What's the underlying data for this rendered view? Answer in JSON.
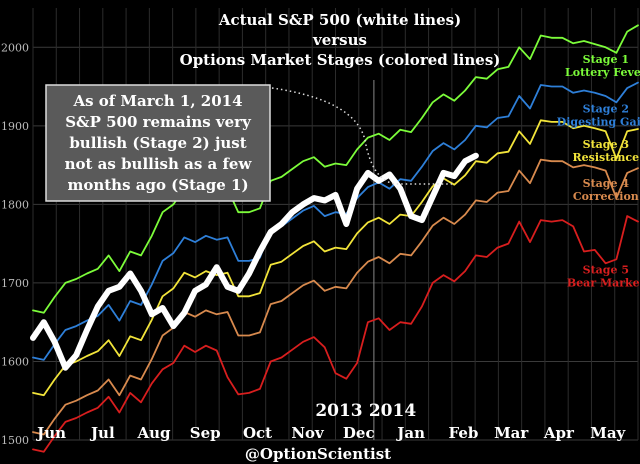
{
  "chart_data": {
    "type": "line",
    "title": [
      "Actual S&P 500 (white lines)",
      "versus",
      "Options Market Stages (colored lines)"
    ],
    "ylim": [
      1500,
      2050
    ],
    "yticks": [
      1500,
      1600,
      1700,
      1800,
      1900,
      2000
    ],
    "xlim": [
      0,
      52
    ],
    "month_labels": [
      {
        "label": "Jun",
        "x": 1.6
      },
      {
        "label": "Jul",
        "x": 6.0
      },
      {
        "label": "Aug",
        "x": 10.4
      },
      {
        "label": "Sep",
        "x": 14.8
      },
      {
        "label": "Oct",
        "x": 19.3
      },
      {
        "label": "Nov",
        "x": 23.6
      },
      {
        "label": "Dec",
        "x": 28.0
      },
      {
        "label": "Jan",
        "x": 32.5
      },
      {
        "label": "Feb",
        "x": 37.0
      },
      {
        "label": "Mar",
        "x": 41.1
      },
      {
        "label": "Apr",
        "x": 45.2
      },
      {
        "label": "May",
        "x": 49.4
      }
    ],
    "year_labels": [
      {
        "label": "2013",
        "x": 26.3
      },
      {
        "label": "2014",
        "x": 30.9
      }
    ],
    "year_divider_x": 29.3,
    "series": [
      {
        "name": "Stage 1",
        "sublabel": "Lottery Fever",
        "color": "#7CFC3A",
        "values": [
          1665,
          1662,
          1682,
          1700,
          1705,
          1712,
          1718,
          1735,
          1715,
          1740,
          1735,
          1760,
          1790,
          1800,
          1820,
          1815,
          1822,
          1818,
          1820,
          1790,
          1790,
          1795,
          1830,
          1835,
          1845,
          1855,
          1860,
          1848,
          1852,
          1850,
          1870,
          1885,
          1890,
          1882,
          1895,
          1892,
          1910,
          1930,
          1940,
          1932,
          1945,
          1962,
          1960,
          1972,
          1975,
          2000,
          1985,
          2015,
          2012,
          2012,
          2005,
          2008,
          2004,
          2000,
          1993,
          2020,
          2028
        ],
        "x0": 0
      },
      {
        "name": "Stage 2",
        "sublabel": "Digesting Gains",
        "color": "#2E7FD8",
        "values": [
          1605,
          1602,
          1622,
          1640,
          1645,
          1652,
          1658,
          1672,
          1652,
          1677,
          1672,
          1698,
          1728,
          1738,
          1758,
          1752,
          1760,
          1755,
          1758,
          1728,
          1728,
          1732,
          1768,
          1772,
          1782,
          1792,
          1798,
          1785,
          1790,
          1788,
          1808,
          1822,
          1828,
          1820,
          1832,
          1830,
          1848,
          1868,
          1878,
          1870,
          1882,
          1900,
          1898,
          1910,
          1912,
          1938,
          1922,
          1952,
          1950,
          1950,
          1942,
          1945,
          1942,
          1938,
          1930,
          1948,
          1955
        ],
        "x0": 0
      },
      {
        "name": "Stage 3",
        "sublabel": "Resistance",
        "color": "#F2E43A",
        "values": [
          1560,
          1557,
          1577,
          1595,
          1600,
          1607,
          1613,
          1627,
          1607,
          1632,
          1627,
          1653,
          1683,
          1693,
          1713,
          1707,
          1715,
          1710,
          1713,
          1683,
          1683,
          1687,
          1723,
          1727,
          1737,
          1747,
          1753,
          1740,
          1745,
          1743,
          1763,
          1777,
          1783,
          1775,
          1787,
          1785,
          1803,
          1823,
          1833,
          1825,
          1837,
          1855,
          1853,
          1865,
          1867,
          1893,
          1877,
          1907,
          1905,
          1905,
          1897,
          1900,
          1897,
          1893,
          1858,
          1893,
          1896
        ],
        "x0": 0
      },
      {
        "name": "Stage 4",
        "sublabel": "Correction",
        "color": "#D88A4E",
        "values": [
          1510,
          1507,
          1527,
          1545,
          1550,
          1557,
          1563,
          1577,
          1557,
          1582,
          1577,
          1603,
          1633,
          1643,
          1663,
          1657,
          1665,
          1660,
          1663,
          1633,
          1633,
          1637,
          1673,
          1677,
          1687,
          1697,
          1703,
          1690,
          1695,
          1693,
          1713,
          1727,
          1733,
          1725,
          1737,
          1735,
          1753,
          1773,
          1783,
          1775,
          1787,
          1805,
          1803,
          1815,
          1817,
          1843,
          1827,
          1857,
          1855,
          1855,
          1847,
          1850,
          1847,
          1843,
          1808,
          1840,
          1846
        ],
        "x0": 0
      },
      {
        "name": "Stage 5",
        "sublabel": "Bear Market",
        "color": "#D81E1E",
        "values": [
          1488,
          1485,
          1505,
          1523,
          1528,
          1535,
          1541,
          1555,
          1535,
          1560,
          1548,
          1572,
          1590,
          1598,
          1620,
          1612,
          1620,
          1614,
          1580,
          1558,
          1560,
          1565,
          1600,
          1605,
          1615,
          1625,
          1631,
          1618,
          1585,
          1578,
          1598,
          1650,
          1655,
          1640,
          1650,
          1648,
          1670,
          1700,
          1710,
          1702,
          1715,
          1735,
          1733,
          1745,
          1750,
          1778,
          1752,
          1780,
          1778,
          1780,
          1772,
          1740,
          1742,
          1725,
          1730,
          1785,
          1778
        ],
        "x0": 0
      },
      {
        "name": "S&P 500",
        "color": "#FFFFFF",
        "values": [
          1630,
          1650,
          1625,
          1592,
          1608,
          1640,
          1670,
          1690,
          1695,
          1712,
          1690,
          1660,
          1668,
          1645,
          1662,
          1690,
          1698,
          1720,
          1695,
          1690,
          1712,
          1740,
          1765,
          1775,
          1790,
          1800,
          1808,
          1805,
          1812,
          1775,
          1820,
          1840,
          1830,
          1838,
          1820,
          1785,
          1780,
          1810,
          1840,
          1836,
          1855,
          1862
        ],
        "x0": 0
      }
    ],
    "series_label_x": 47.0,
    "annotation": "As of March 1, 2014 S&P 500 remains very bullish (Stage 2) just not as bullish as a few months ago (Stage 1)",
    "annotation_lines": [
      "As of March 1, 2014",
      "S&P 500 remains very",
      "bullish (Stage 2) just",
      "not as bullish as a few",
      "months ago (Stage 1)"
    ],
    "watermark": "@OptionScientist",
    "grid": true
  }
}
